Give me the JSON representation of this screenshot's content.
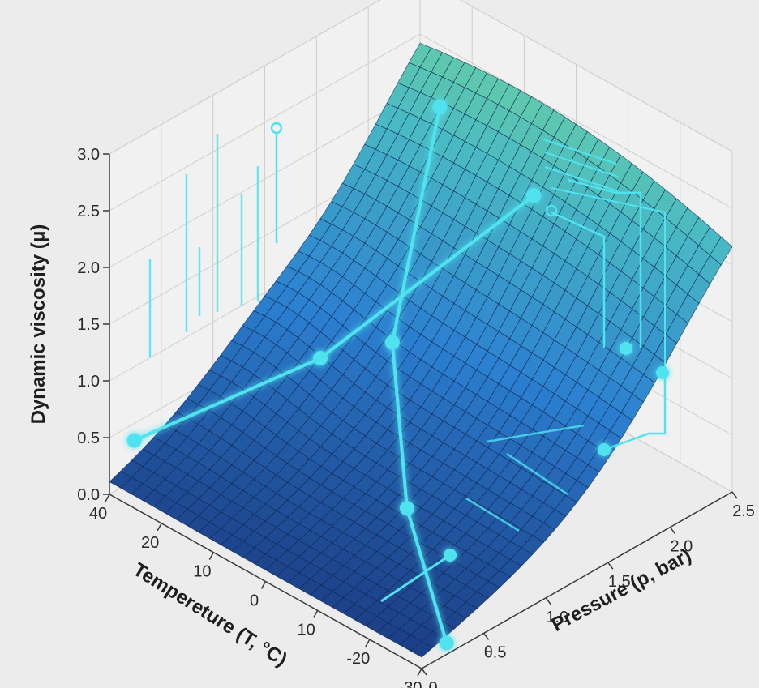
{
  "chart_data": {
    "type": "surface",
    "title": "",
    "zlabel": "Dynamic viscosity (μ)",
    "xlabel": "Tempereture (T, °C)",
    "ylabel": "Pressure (p, bar)",
    "zlim": [
      0,
      3
    ],
    "z_ticks": [
      "0.0",
      "0.5",
      "1.0",
      "1.5",
      "2.0",
      "2.5",
      "3.0"
    ],
    "temperature_ticks": [
      "40",
      "20",
      "10",
      "0",
      "10",
      "-20",
      "-30"
    ],
    "pressure_ticks": [
      "0",
      "θ.5",
      "1.0",
      "1.5",
      "2.0",
      "2.5"
    ],
    "grid": true,
    "surface": {
      "temperature_range": [
        40,
        -30
      ],
      "pressure_range": [
        0,
        2.5
      ],
      "corner_values": {
        "T40_p0": 0.1,
        "T40_p2.5": 1.0,
        "T-30_p0": 0.1,
        "T-30_p2.5": 0.9
      },
      "peak_value": 3.0,
      "colormap": [
        "#1c3f86",
        "#2b7fd0",
        "#48b8c4",
        "#7ee08e"
      ]
    },
    "highlight_lines": [
      {
        "description": "",
        "points": [
          [
            40,
            0.2,
            0.35
          ],
          [
            15,
            0.8,
            1.25
          ],
          [
            -5,
            1.8,
            2.5
          ]
        ]
      },
      {
        "description": "",
        "points": [
          [
            30,
            2.3,
            2.2
          ],
          [
            10,
            1.2,
            1.25
          ],
          [
            -10,
            0.6,
            0.6
          ],
          [
            -30,
            0.2,
            0.1
          ]
        ]
      }
    ],
    "accent_color": "#4fe3f0"
  }
}
